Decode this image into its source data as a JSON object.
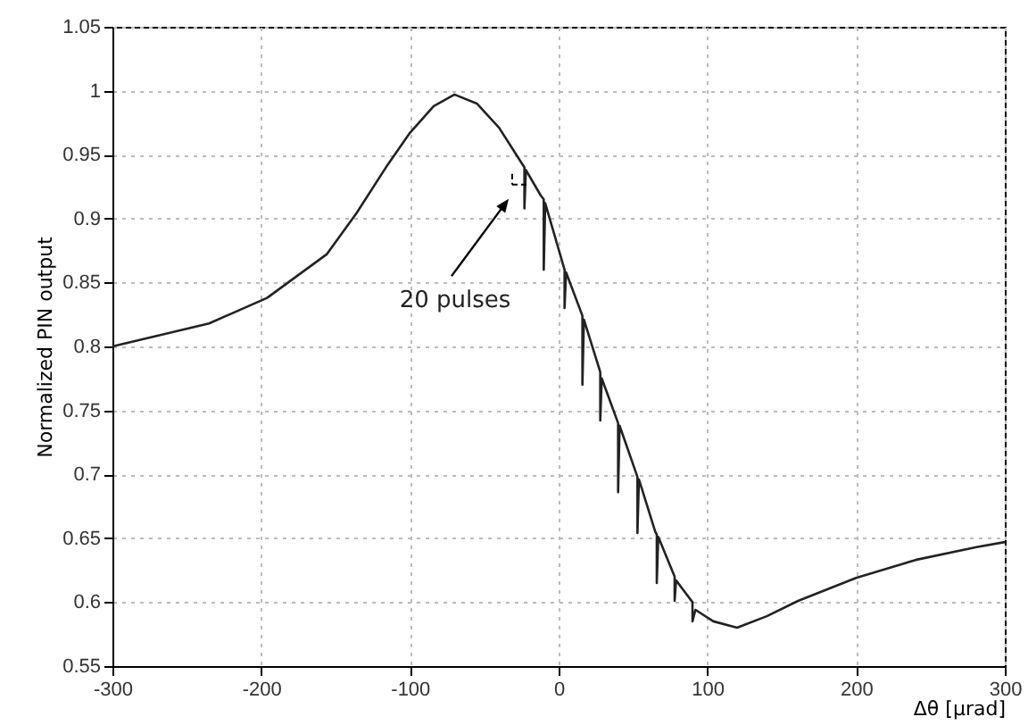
{
  "chart_data": {
    "type": "line",
    "xlabel": "Δθ [μrad]",
    "ylabel": "Normalized PIN output",
    "xlim": [
      -300,
      300
    ],
    "xticks": [
      -300,
      -200,
      -100,
      0,
      100,
      200,
      300
    ],
    "ylim": [
      0.55,
      1.05
    ],
    "yticks": [
      0.55,
      0.6,
      0.65,
      0.7,
      0.75,
      0.8,
      0.85,
      0.9,
      0.95,
      1,
      1.05
    ],
    "grid": true,
    "line_style": "solid",
    "color": "#222222",
    "x": [
      -300,
      -235,
      -196,
      -156,
      -136,
      -115,
      -100,
      -84,
      -70,
      -55,
      -40,
      -23,
      -23,
      -22,
      -12,
      -10,
      -10,
      -9,
      4,
      4,
      5,
      16,
      16,
      17,
      28,
      28,
      29,
      40,
      40,
      41,
      53,
      53,
      54,
      65,
      66,
      66,
      67,
      78,
      78,
      79,
      90,
      90,
      92,
      104,
      120,
      140,
      161,
      200,
      240,
      281,
      300
    ],
    "values": [
      0.8,
      0.818,
      0.838,
      0.872,
      0.904,
      0.942,
      0.967,
      0.988,
      0.997,
      0.99,
      0.971,
      0.94,
      0.908,
      0.938,
      0.918,
      0.915,
      0.86,
      0.912,
      0.86,
      0.83,
      0.858,
      0.824,
      0.77,
      0.821,
      0.78,
      0.742,
      0.775,
      0.74,
      0.686,
      0.738,
      0.698,
      0.654,
      0.696,
      0.655,
      0.653,
      0.615,
      0.651,
      0.62,
      0.601,
      0.617,
      0.6,
      0.585,
      0.594,
      0.585,
      0.58,
      0.589,
      0.601,
      0.619,
      0.633,
      0.643,
      0.647
    ],
    "annotations": [
      "20 pulses"
    ]
  }
}
